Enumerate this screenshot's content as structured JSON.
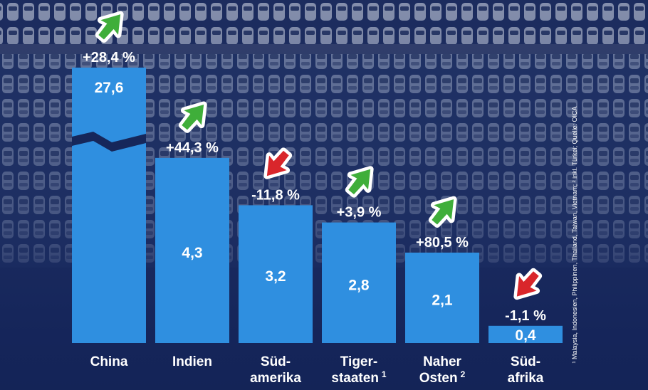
{
  "chart_data": {
    "type": "bar",
    "categories": [
      {
        "line1": "China",
        "line2": "",
        "sup": ""
      },
      {
        "line1": "Indien",
        "line2": "",
        "sup": ""
      },
      {
        "line1": "Süd-",
        "line2": "amerika",
        "sup": ""
      },
      {
        "line1": "Tiger-",
        "line2": "staaten",
        "sup": "1"
      },
      {
        "line1": "Naher",
        "line2": "Osten",
        "sup": "2"
      },
      {
        "line1": "Süd-",
        "line2": "afrika",
        "sup": ""
      }
    ],
    "values": [
      27.6,
      4.3,
      3.2,
      2.8,
      2.1,
      0.4
    ],
    "value_labels": [
      "27,6",
      "4,3",
      "3,2",
      "2,8",
      "2,1",
      "0,4"
    ],
    "changes": [
      {
        "label": "+28,4 %",
        "direction": "up"
      },
      {
        "label": "+44,3 %",
        "direction": "up"
      },
      {
        "label": "-11,8 %",
        "direction": "down"
      },
      {
        "label": "+3,9 %",
        "direction": "up"
      },
      {
        "label": "+80,5 %",
        "direction": "up"
      },
      {
        "label": "-1,1 %",
        "direction": "down"
      }
    ],
    "axis_break": "China",
    "grid": false,
    "footnote": "¹ Malaysia, Indonesien, Philippinen, Thailand, Taiwan, Vietnam; ² inkl. Türkei; Quelle: OICA"
  },
  "colors": {
    "bar": "#2f8fe0",
    "arrow_up": "#3fae3a",
    "arrow_down": "#d9262b",
    "text": "#ffffff",
    "background": "#16275a"
  },
  "icons": {
    "up": "green-up-arrow-icon",
    "down": "red-down-arrow-icon"
  }
}
